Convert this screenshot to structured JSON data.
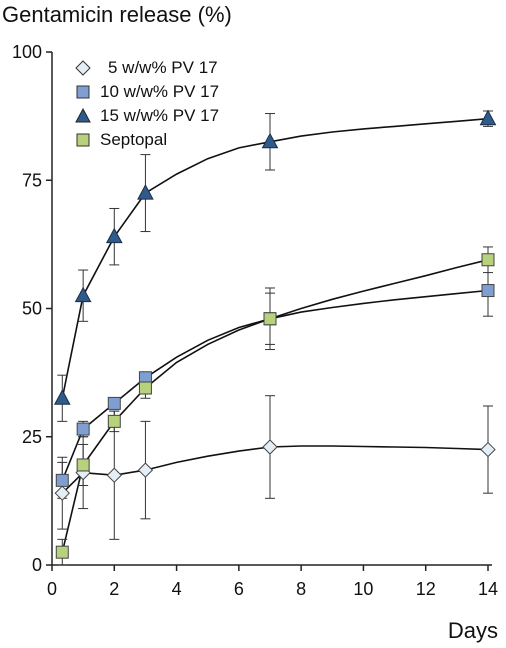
{
  "chart_data": {
    "type": "line",
    "ylabel": "Gentamicin release (%)",
    "xlabel": "Days",
    "xlim": [
      0,
      14
    ],
    "ylim": [
      0,
      100
    ],
    "xticks": [
      "0",
      "2",
      "4",
      "6",
      "8",
      "10",
      "12",
      "14"
    ],
    "yticks": [
      "0",
      "25",
      "50",
      "75",
      "100"
    ],
    "grid": false,
    "legend_position": "top-left",
    "series": [
      {
        "name": "5 w/w% PV 17",
        "marker": "diamond",
        "color": "#e4eef7",
        "points": [
          {
            "x": 0.33,
            "y": 14,
            "err": 7
          },
          {
            "x": 1,
            "y": 18,
            "err": 7
          },
          {
            "x": 2,
            "y": 17.5,
            "err": 12.5
          },
          {
            "x": 3,
            "y": 18.5,
            "err": 9.5
          },
          {
            "x": 7,
            "y": 23,
            "err": 10
          },
          {
            "x": 14,
            "y": 22.5,
            "err": 8.5
          }
        ],
        "curve": [
          [
            0.33,
            14
          ],
          [
            1,
            18
          ],
          [
            2,
            17.5
          ],
          [
            3,
            18.5
          ],
          [
            4,
            20
          ],
          [
            5,
            21.2
          ],
          [
            6,
            22.2
          ],
          [
            7,
            23
          ],
          [
            8,
            23.2
          ],
          [
            9,
            23.2
          ],
          [
            10,
            23.1
          ],
          [
            11,
            23
          ],
          [
            12,
            22.9
          ],
          [
            13,
            22.7
          ],
          [
            14,
            22.5
          ]
        ]
      },
      {
        "name": "10 w/w% PV 17",
        "marker": "square",
        "color": "#7f9fd2",
        "points": [
          {
            "x": 0.33,
            "y": 16.5,
            "err": 3.5
          },
          {
            "x": 1,
            "y": 26.5,
            "err": 1.5
          },
          {
            "x": 2,
            "y": 31.5,
            "err": 1
          },
          {
            "x": 3,
            "y": 36.5,
            "err": 1
          },
          {
            "x": 7,
            "y": 48,
            "err": 6
          },
          {
            "x": 14,
            "y": 53.5,
            "err": 5
          }
        ],
        "curve": [
          [
            0.33,
            16.5
          ],
          [
            1,
            26.5
          ],
          [
            2,
            31.5
          ],
          [
            3,
            36.5
          ],
          [
            4,
            40.5
          ],
          [
            5,
            43.8
          ],
          [
            6,
            46.3
          ],
          [
            7,
            48
          ],
          [
            8,
            49.3
          ],
          [
            9,
            50.2
          ],
          [
            10,
            51
          ],
          [
            11,
            51.7
          ],
          [
            12,
            52.3
          ],
          [
            13,
            52.9
          ],
          [
            14,
            53.5
          ]
        ]
      },
      {
        "name": "15 w/w% PV 17",
        "marker": "triangle",
        "color": "#2e5a8c",
        "points": [
          {
            "x": 0.33,
            "y": 32.5,
            "err": 4.5
          },
          {
            "x": 1,
            "y": 52.5,
            "err": 5
          },
          {
            "x": 2,
            "y": 64,
            "err": 5.5
          },
          {
            "x": 3,
            "y": 72.5,
            "err": 7.5
          },
          {
            "x": 7,
            "y": 82.5,
            "err": 5.5
          },
          {
            "x": 14,
            "y": 87,
            "err": 1.5
          }
        ],
        "curve": [
          [
            0.33,
            32.5
          ],
          [
            1,
            52.5
          ],
          [
            2,
            64
          ],
          [
            3,
            72.5
          ],
          [
            4,
            76.2
          ],
          [
            5,
            79.2
          ],
          [
            6,
            81.3
          ],
          [
            7,
            82.5
          ],
          [
            8,
            83.6
          ],
          [
            9,
            84.4
          ],
          [
            10,
            85
          ],
          [
            11,
            85.5
          ],
          [
            12,
            86
          ],
          [
            13,
            86.5
          ],
          [
            14,
            87
          ]
        ]
      },
      {
        "name": "Septopal",
        "marker": "square",
        "color": "#b7d17d",
        "points": [
          {
            "x": 0.33,
            "y": 2.5,
            "err": 2.5
          },
          {
            "x": 1,
            "y": 19.5,
            "err": 4
          },
          {
            "x": 2,
            "y": 28,
            "err": 2
          },
          {
            "x": 3,
            "y": 34.5,
            "err": 2
          },
          {
            "x": 7,
            "y": 48,
            "err": 5
          },
          {
            "x": 14,
            "y": 59.5,
            "err": 2.5
          }
        ],
        "curve": [
          [
            0.33,
            2.5
          ],
          [
            1,
            19.5
          ],
          [
            2,
            28
          ],
          [
            3,
            34.5
          ],
          [
            4,
            39.5
          ],
          [
            5,
            43
          ],
          [
            6,
            45.8
          ],
          [
            7,
            48
          ],
          [
            8,
            50
          ],
          [
            9,
            51.8
          ],
          [
            10,
            53.4
          ],
          [
            11,
            54.9
          ],
          [
            12,
            56.4
          ],
          [
            13,
            58
          ],
          [
            14,
            59.5
          ]
        ]
      }
    ]
  }
}
